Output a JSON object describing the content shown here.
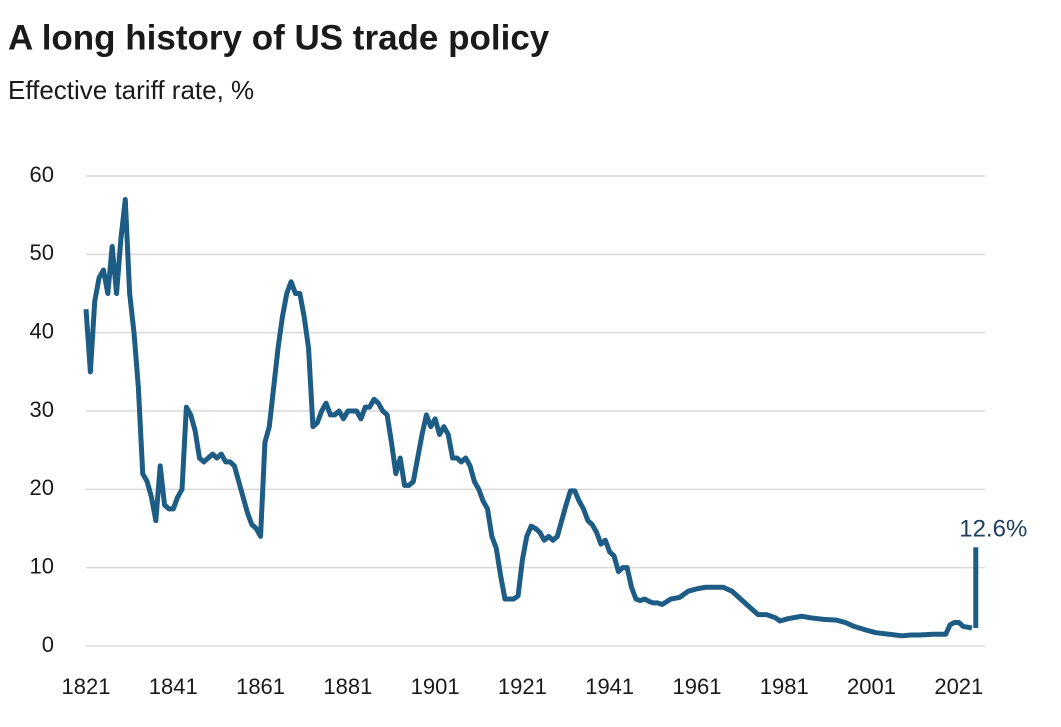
{
  "chart_data": {
    "type": "line",
    "title": "A long history of US trade policy",
    "subtitle": "Effective tariff rate, %",
    "x": [
      1821,
      1822,
      1823,
      1824,
      1825,
      1826,
      1827,
      1828,
      1829,
      1830,
      1831,
      1832,
      1833,
      1834,
      1835,
      1836,
      1837,
      1838,
      1839,
      1840,
      1841,
      1842,
      1843,
      1844,
      1845,
      1846,
      1847,
      1848,
      1849,
      1850,
      1851,
      1852,
      1853,
      1854,
      1855,
      1856,
      1857,
      1858,
      1859,
      1860,
      1861,
      1862,
      1863,
      1864,
      1865,
      1866,
      1867,
      1868,
      1869,
      1870,
      1871,
      1872,
      1873,
      1874,
      1875,
      1876,
      1877,
      1878,
      1879,
      1880,
      1881,
      1882,
      1883,
      1884,
      1885,
      1886,
      1887,
      1888,
      1889,
      1890,
      1891,
      1892,
      1893,
      1894,
      1895,
      1896,
      1897,
      1898,
      1899,
      1900,
      1901,
      1902,
      1903,
      1904,
      1905,
      1906,
      1907,
      1908,
      1909,
      1910,
      1911,
      1912,
      1913,
      1914,
      1915,
      1916,
      1917,
      1918,
      1919,
      1920,
      1921,
      1922,
      1923,
      1924,
      1925,
      1926,
      1927,
      1928,
      1929,
      1930,
      1931,
      1932,
      1933,
      1934,
      1935,
      1936,
      1937,
      1938,
      1939,
      1940,
      1941,
      1942,
      1943,
      1944,
      1945,
      1946,
      1947,
      1948,
      1949,
      1950,
      1951,
      1952,
      1953,
      1955,
      1957,
      1959,
      1961,
      1963,
      1965,
      1967,
      1969,
      1971,
      1973,
      1975,
      1977,
      1979,
      1980,
      1982,
      1985,
      1987,
      1990,
      1993,
      1995,
      1997,
      2000,
      2002,
      2005,
      2008,
      2010,
      2012,
      2015,
      2018,
      2019,
      2020,
      2021,
      2022,
      2023,
      2024
    ],
    "series": [
      {
        "name": "Effective tariff rate",
        "color": "#1d5c84",
        "values": [
          43,
          35,
          44,
          47,
          48,
          45,
          51,
          45,
          52,
          57,
          45,
          40,
          33,
          22,
          21,
          19,
          16,
          23,
          18,
          17.5,
          17.5,
          19,
          20,
          30.5,
          29.5,
          27.5,
          24,
          23.5,
          24,
          24.5,
          24,
          24.5,
          23.5,
          23.5,
          23,
          21,
          19,
          17,
          15.5,
          15,
          14,
          26,
          28,
          33,
          38,
          42,
          45,
          46.5,
          45,
          45,
          42,
          38,
          28,
          28.5,
          30,
          31,
          29.5,
          29.5,
          30,
          29,
          30,
          30,
          30,
          29,
          30.5,
          30.5,
          31.5,
          31,
          30,
          29.5,
          26,
          22,
          24,
          20.5,
          20.5,
          21,
          24,
          27,
          29.5,
          28,
          29,
          27,
          28,
          27,
          24,
          24,
          23.5,
          24,
          23,
          21,
          20,
          18.5,
          17.5,
          14,
          12.5,
          9,
          6,
          6,
          6,
          6.4,
          11,
          14,
          15.3,
          15,
          14.5,
          13.5,
          14,
          13.5,
          14,
          16,
          18,
          19.8,
          19.8,
          18.5,
          17.5,
          16,
          15.5,
          14.5,
          13,
          13.5,
          12,
          11.5,
          9.5,
          10,
          10,
          7.5,
          6,
          5.8,
          6,
          5.7,
          5.5,
          5.5,
          5.3,
          6,
          6.2,
          7,
          7.3,
          7.5,
          7.5,
          7.5,
          7,
          6,
          5,
          4,
          4,
          3.6,
          3.2,
          3.5,
          3.8,
          3.6,
          3.4,
          3.3,
          3.0,
          2.5,
          2.0,
          1.7,
          1.5,
          1.3,
          1.4,
          1.4,
          1.5,
          1.5,
          2.7,
          3.0,
          3.0,
          2.5,
          2.4,
          2.3
        ]
      }
    ],
    "highlight": {
      "x": 2025,
      "value": 12.6,
      "value_label": "12.6%",
      "color": "#1d5c84"
    },
    "xlim": [
      1821,
      2027
    ],
    "xticks": [
      1821,
      1841,
      1861,
      1881,
      1901,
      1921,
      1941,
      1961,
      1981,
      2001,
      2021
    ],
    "ylim": [
      0,
      60
    ],
    "yticks": [
      0,
      10,
      20,
      30,
      40,
      50,
      60
    ],
    "grid": true
  }
}
